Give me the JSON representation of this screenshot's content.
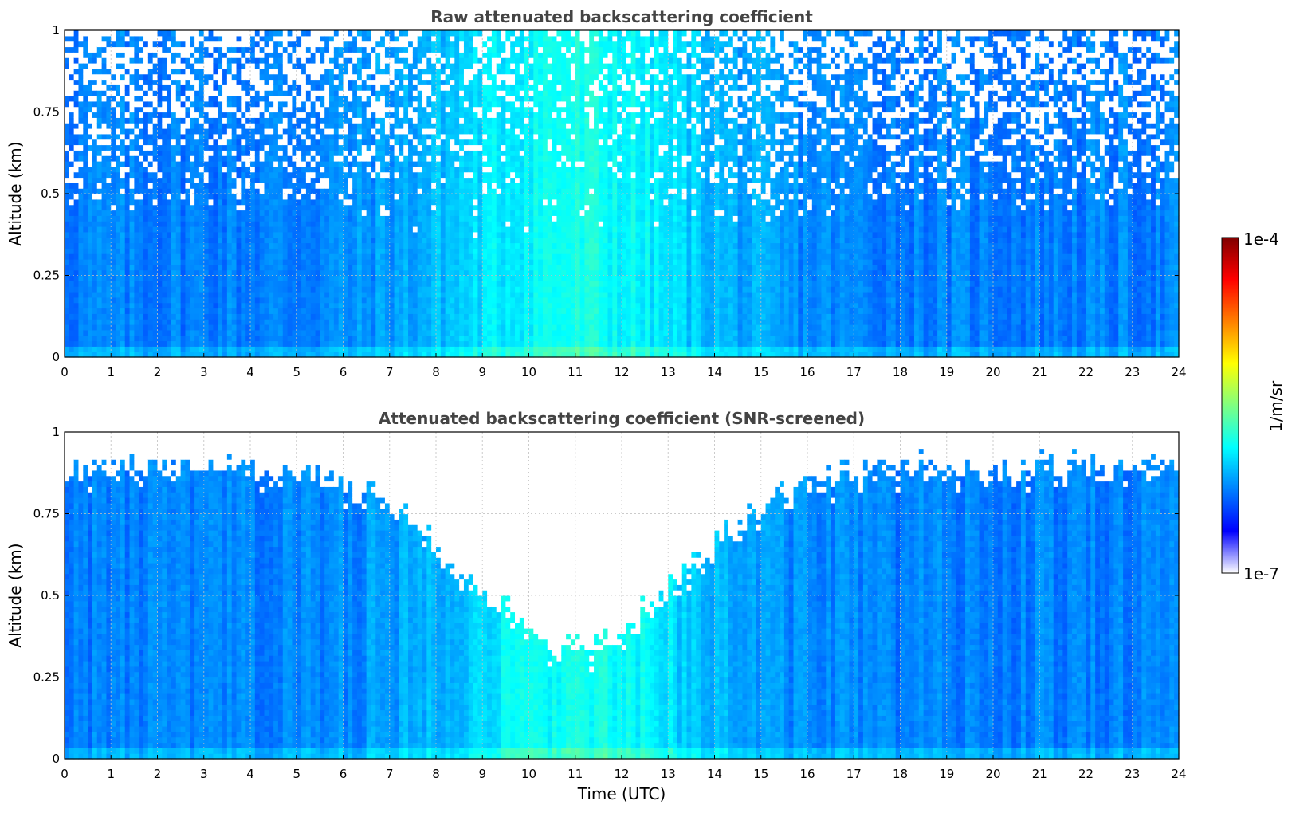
{
  "chart_data": [
    {
      "type": "heatmap",
      "title": "Raw attenuated backscattering coefficient",
      "xlabel": "",
      "ylabel": "Altitude (km)",
      "xlim": [
        0,
        24
      ],
      "ylim": [
        0,
        1
      ],
      "xticks": [
        "0",
        "1",
        "2",
        "3",
        "4",
        "5",
        "6",
        "7",
        "8",
        "9",
        "10",
        "11",
        "12",
        "13",
        "14",
        "15",
        "16",
        "17",
        "18",
        "19",
        "20",
        "21",
        "22",
        "23",
        "24"
      ],
      "yticks": [
        "0",
        "0.25",
        "0.5",
        "0.75",
        "1"
      ],
      "grid": true,
      "screened": false
    },
    {
      "type": "heatmap",
      "title": "Attenuated backscattering coefficient (SNR-screened)",
      "xlabel": "Time (UTC)",
      "ylabel": "Altitude (km)",
      "xlim": [
        0,
        24
      ],
      "ylim": [
        0,
        1
      ],
      "xticks": [
        "0",
        "1",
        "2",
        "3",
        "4",
        "5",
        "6",
        "7",
        "8",
        "9",
        "10",
        "11",
        "12",
        "13",
        "14",
        "15",
        "16",
        "17",
        "18",
        "19",
        "20",
        "21",
        "22",
        "23",
        "24"
      ],
      "yticks": [
        "0",
        "0.25",
        "0.5",
        "0.75",
        "1"
      ],
      "grid": true,
      "screened": true
    }
  ],
  "colorbar": {
    "label": "1/m/sr",
    "max_label": "1e-4",
    "min_label": "1e-7",
    "scale": "log",
    "colormap": "jet",
    "colors": [
      "#ffffff",
      "#0000ff",
      "#0080ff",
      "#00ffff",
      "#80ff80",
      "#ffff00",
      "#ff8000",
      "#ff0000",
      "#800000"
    ]
  }
}
